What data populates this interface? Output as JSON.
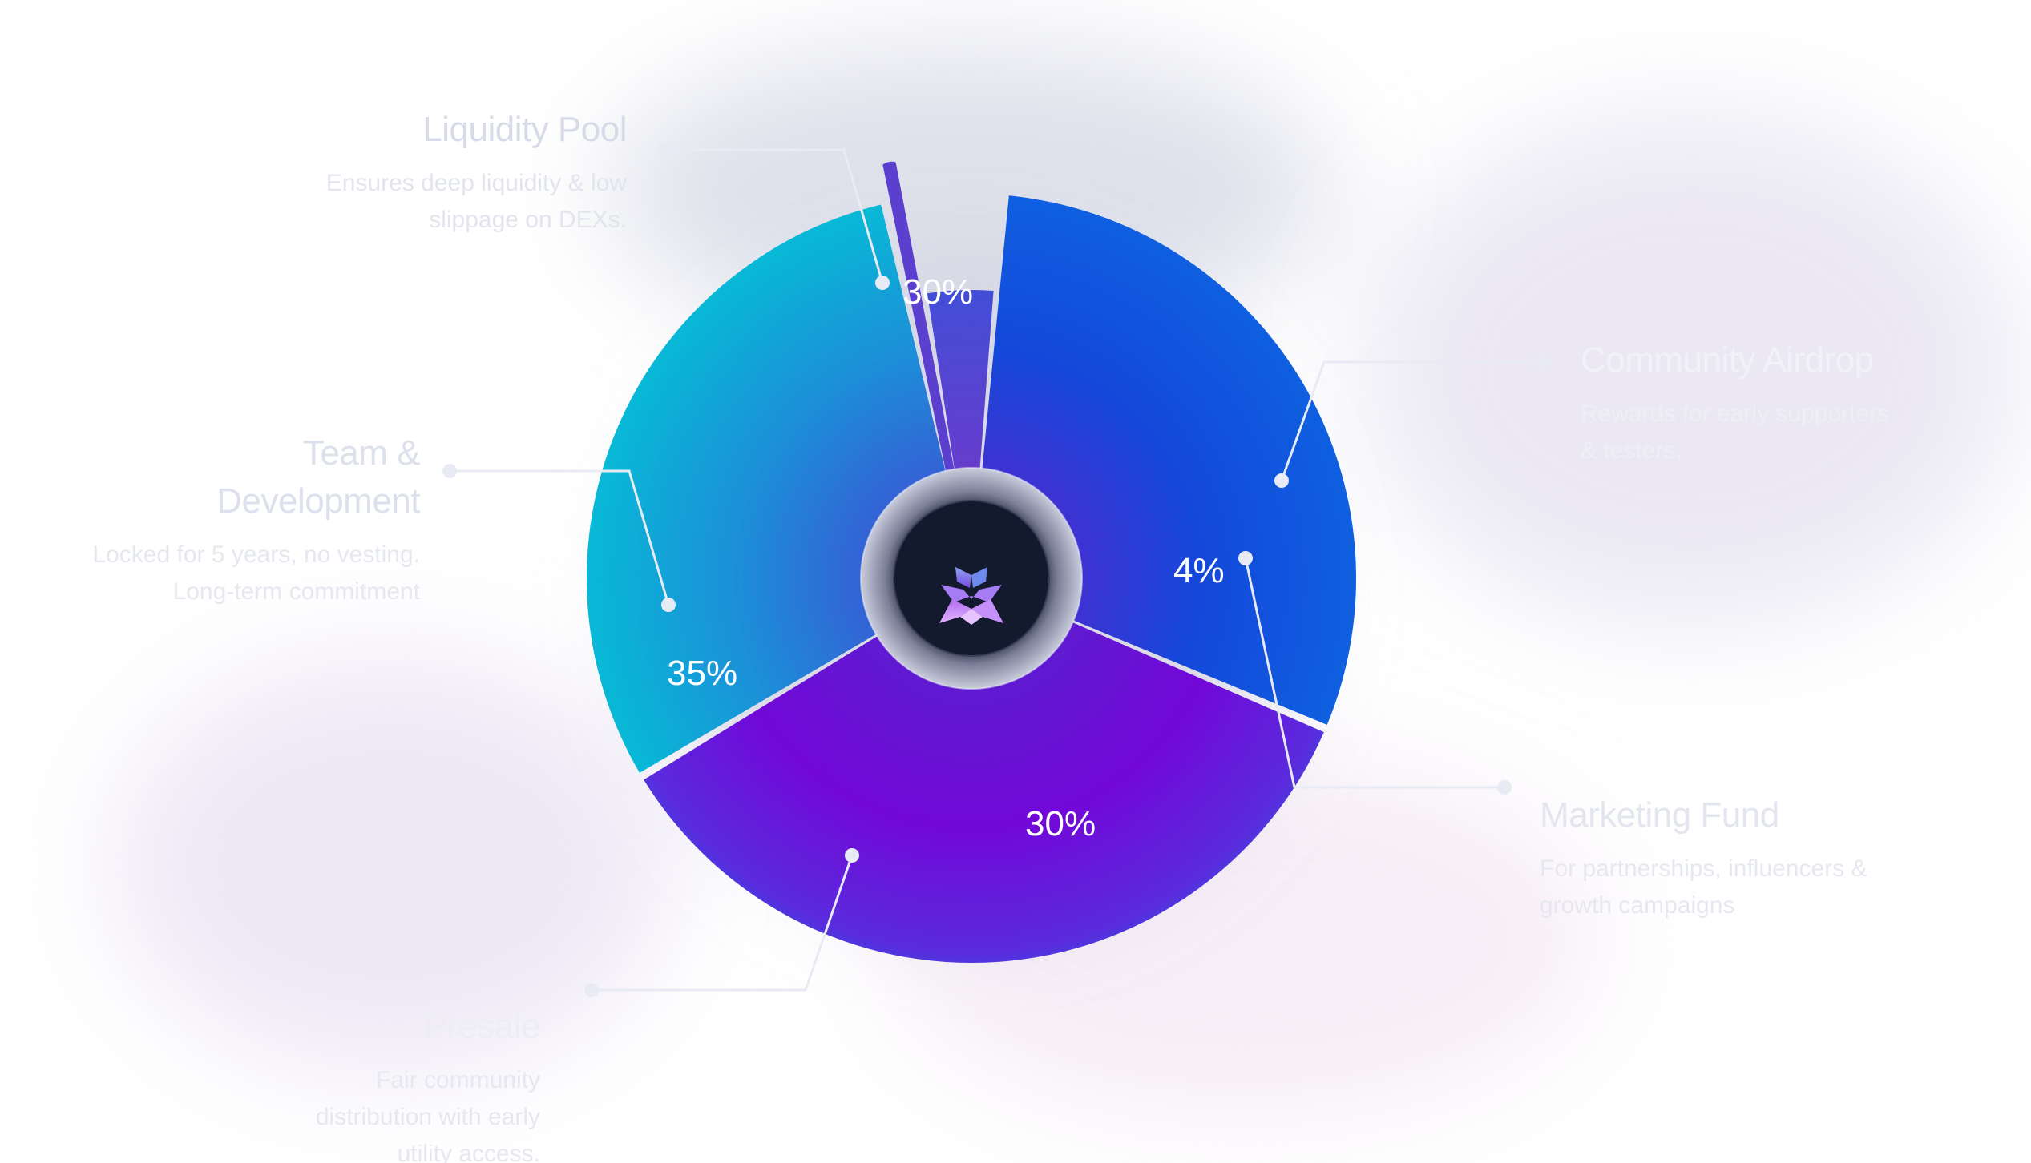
{
  "chart_data": {
    "type": "pie",
    "categories": [
      "Liquidity Pool",
      "Community Airdrop",
      "Marketing Fund",
      "Presale",
      "Team & Development"
    ],
    "values": [
      30,
      1,
      4,
      30,
      35
    ],
    "value_labels": [
      "30%",
      "",
      "4%",
      "30%",
      "35%"
    ],
    "series": [
      {
        "name": "",
        "values": [
          30,
          1,
          4,
          30,
          35
        ]
      }
    ],
    "legend": "around-chart",
    "grid": false
  },
  "colors": {
    "liquidity": "#07B0D6",
    "liquidity_inner": "#2E6FD8",
    "airdrop": "#6DAE55",
    "airdrop_inner": "#5E3FC9",
    "marketing": "#5A3DC9",
    "presale": "#1550E0",
    "presale_edge": "#0F7BDB",
    "team": "#7206D6",
    "team_edge": "#3C3EDF",
    "center_dark": "#141A2E",
    "label_text": "#DEE2EE",
    "desc_text": "#E4E7F0",
    "leader_line": "#E8EBF3"
  },
  "labels": {
    "liquidity": {
      "title": "Liquidity Pool",
      "desc": "Ensures deep liquidity & low slippage on DEXs."
    },
    "team": {
      "title": "Team & Development",
      "desc": "Locked for 5 years, no vesting. Long-term commitment"
    },
    "presale": {
      "title": "Presale",
      "desc": "Fair community distribution with early utility access."
    },
    "airdrop": {
      "title": "Community Airdrop",
      "desc": "Rewards for early supporters & testers."
    },
    "marketing": {
      "title": "Marketing Fund",
      "desc": "For partnerships, influencers & growth campaigns"
    }
  },
  "logo": {
    "icon": "crystal-star-logo-icon"
  }
}
